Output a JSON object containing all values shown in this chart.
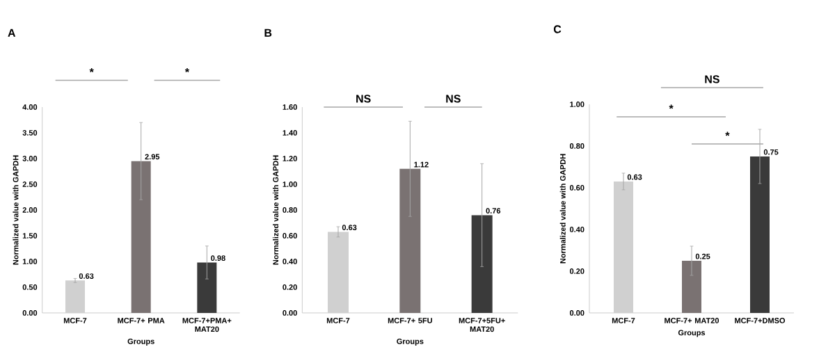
{
  "chart_data": [
    {
      "type": "bar",
      "title": "A",
      "xlabel": "Groups",
      "ylabel": "Normalized value with GAPDH",
      "categories": [
        "MCF-7",
        "MCF-7+ PMA",
        "MCF-7+PMA+ MAT20"
      ],
      "values": [
        0.63,
        2.95,
        0.98
      ],
      "errors": [
        0.04,
        0.75,
        0.32
      ],
      "value_labels": [
        "0.63",
        "2.95",
        "0.98"
      ],
      "colors": [
        "#d0d0d0",
        "#7a7272",
        "#3a3a3a"
      ],
      "ylim": [
        0,
        4
      ],
      "yticks": [
        {
          "value": 0,
          "label": "0.00"
        },
        {
          "value": 0.5,
          "label": "0.50"
        },
        {
          "value": 1,
          "label": "1.00"
        },
        {
          "value": 1.5,
          "label": "1.50"
        },
        {
          "value": 2,
          "label": "2.00"
        },
        {
          "value": 2.5,
          "label": "2.50"
        },
        {
          "value": 3,
          "label": "3.00"
        },
        {
          "value": 3.5,
          "label": "3.50"
        },
        {
          "value": 4,
          "label": "4.00"
        }
      ],
      "annotations": [
        "*",
        "*"
      ],
      "grid": false
    },
    {
      "type": "bar",
      "title": "B",
      "xlabel": "Groups",
      "ylabel": "Normalized value with GAPDH",
      "categories": [
        "MCF-7",
        "MCF-7+ 5FU",
        "MCF-7+5FU+ MAT20"
      ],
      "values": [
        0.63,
        1.12,
        0.76
      ],
      "errors": [
        0.04,
        0.37,
        0.4
      ],
      "value_labels": [
        "0.63",
        "1.12",
        "0.76"
      ],
      "colors": [
        "#d0d0d0",
        "#7a7272",
        "#3a3a3a"
      ],
      "ylim": [
        0,
        1.6
      ],
      "yticks": [
        {
          "value": 0,
          "label": "0.00"
        },
        {
          "value": 0.2,
          "label": "0.20"
        },
        {
          "value": 0.4,
          "label": "0.40"
        },
        {
          "value": 0.6,
          "label": "0.60"
        },
        {
          "value": 0.8,
          "label": "0.80"
        },
        {
          "value": 1,
          "label": "1.00"
        },
        {
          "value": 1.2,
          "label": "1.20"
        },
        {
          "value": 1.4,
          "label": "1.40"
        },
        {
          "value": 1.6,
          "label": "1.60"
        }
      ],
      "annotations": [
        "NS",
        "NS"
      ],
      "grid": false
    },
    {
      "type": "bar",
      "title": "C",
      "xlabel": "Groups",
      "ylabel": "Normalized value with GAPDH",
      "categories": [
        "MCF-7",
        "MCF-7+ MAT20",
        "MCF-7+DMSO"
      ],
      "values": [
        0.63,
        0.25,
        0.75
      ],
      "errors": [
        0.04,
        0.07,
        0.13
      ],
      "value_labels": [
        "0.63",
        "0.25",
        "0.75"
      ],
      "colors": [
        "#d0d0d0",
        "#7a7272",
        "#3a3a3a"
      ],
      "ylim": [
        0,
        1
      ],
      "yticks": [
        {
          "value": 0,
          "label": "0.00"
        },
        {
          "value": 0.2,
          "label": "0.20"
        },
        {
          "value": 0.4,
          "label": "0.40"
        },
        {
          "value": 0.6,
          "label": "0.60"
        },
        {
          "value": 0.8,
          "label": "0.80"
        },
        {
          "value": 1,
          "label": "1.00"
        }
      ],
      "annotations": [
        "NS",
        "*",
        "*"
      ],
      "grid": false
    }
  ]
}
